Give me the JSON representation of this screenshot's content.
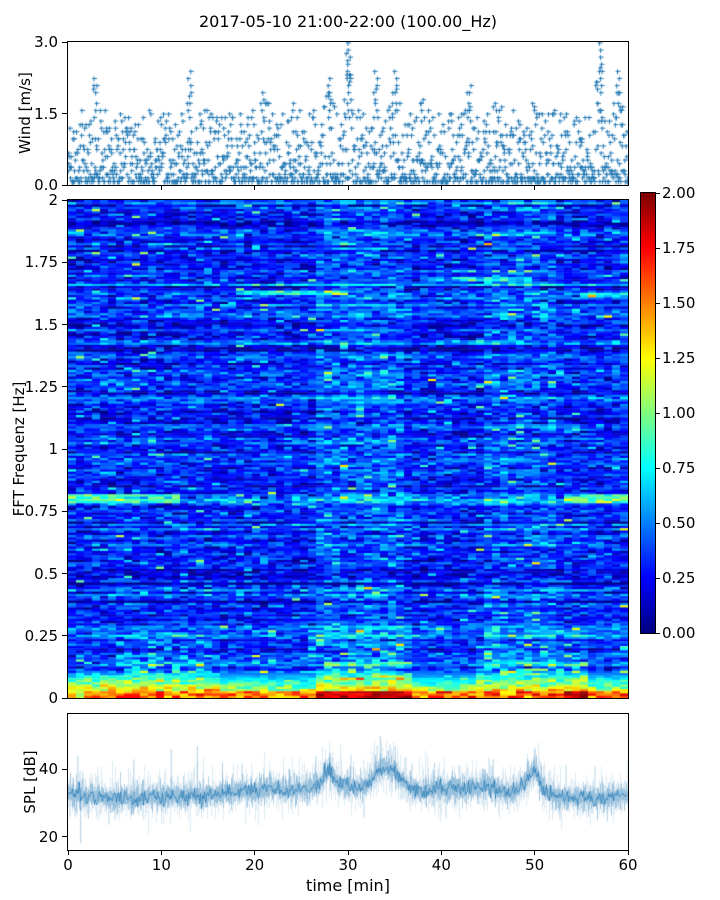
{
  "figure": {
    "title": "2017-05-10 21:00-22:00 (100.00_Hz)",
    "background": "#ffffff",
    "accent_color": "#1f77b4"
  },
  "chart_data": [
    {
      "id": "wind",
      "type": "scatter",
      "ylabel": "Wind [m/s]",
      "xlim": [
        0,
        60
      ],
      "ylim": [
        0,
        3
      ],
      "ytick_labels": [
        "0.0",
        "1.5",
        "3.0"
      ],
      "ytick_values": [
        0,
        1.5,
        3
      ],
      "xtick_minor_values": [
        10,
        20,
        30,
        40,
        50
      ],
      "marker": "plus",
      "color": "#1f77b4",
      "n_points": 1500,
      "quantize_step": 0.0745,
      "min_value": 0.07,
      "baseline_max": 1.55,
      "gust_peaks": [
        {
          "t": 3,
          "amp": 2.2
        },
        {
          "t": 8,
          "amp": 1.5
        },
        {
          "t": 13,
          "amp": 2.4
        },
        {
          "t": 17,
          "amp": 1.6
        },
        {
          "t": 21,
          "amp": 1.9
        },
        {
          "t": 24,
          "amp": 1.7
        },
        {
          "t": 28,
          "amp": 2.2
        },
        {
          "t": 30,
          "amp": 3.0
        },
        {
          "t": 33,
          "amp": 2.3
        },
        {
          "t": 35,
          "amp": 2.4
        },
        {
          "t": 38,
          "amp": 1.8
        },
        {
          "t": 43,
          "amp": 2.1
        },
        {
          "t": 46,
          "amp": 1.8
        },
        {
          "t": 50,
          "amp": 1.7
        },
        {
          "t": 54,
          "amp": 1.6
        },
        {
          "t": 57,
          "amp": 2.9
        },
        {
          "t": 59,
          "amp": 2.3
        }
      ]
    },
    {
      "id": "spectrogram",
      "type": "heatmap",
      "ylabel": "FFT Frequenz [Hz]",
      "xlim": [
        0,
        60
      ],
      "ylim": [
        0,
        2
      ],
      "ytick_labels": [
        "0",
        "0.25",
        "0.5",
        "0.75",
        "1",
        "1.25",
        "1.5",
        "1.75",
        "2"
      ],
      "ytick_values": [
        0,
        0.25,
        0.5,
        0.75,
        1,
        1.25,
        1.5,
        1.75,
        2
      ],
      "colormap": "jet",
      "clim": [
        0,
        2
      ],
      "n_time_bins": 70,
      "n_freq_bins": 220,
      "background_level": {
        "mean": 0.3,
        "row_sigma": 0.1,
        "cell_sigma": 0.13
      },
      "features": {
        "band_08": {
          "f_center": 0.8,
          "f_halfwidth": 0.022,
          "strong_t": [
            [
              0,
              12
            ],
            [
              53,
              60
            ]
          ]
        },
        "high_streaks": [
          {
            "f": 1.63,
            "t": [
              18,
              30
            ]
          },
          {
            "f": 1.68,
            "t": [
              38,
              50
            ]
          },
          {
            "f": 1.62,
            "t": [
              55,
              60
            ]
          }
        ],
        "low_streak_windows": [
          [
            5,
            15
          ],
          [
            26,
            37
          ],
          [
            44,
            56
          ]
        ],
        "vertical_columns": [
          {
            "t": [
              27,
              36
            ],
            "boost": 0.12
          },
          {
            "t": [
              45,
              52
            ],
            "boost": 0.1
          }
        ],
        "hot_bottom_windows": [
          [
            27,
            37
          ],
          [
            53,
            56
          ]
        ]
      }
    },
    {
      "id": "spl",
      "type": "line",
      "ylabel": "SPL [dB]",
      "xlabel": "time [min]",
      "xlim": [
        0,
        60
      ],
      "ylim": [
        16,
        56.5
      ],
      "ytick_labels": [
        "20",
        "40"
      ],
      "ytick_values": [
        20,
        40
      ],
      "xtick_labels": [
        "0",
        "10",
        "20",
        "30",
        "40",
        "50",
        "60"
      ],
      "xtick_values": [
        0,
        10,
        20,
        30,
        40,
        50,
        60
      ],
      "color": "#1f77b4",
      "mean_envelope_t_step": 1,
      "mean_envelope": [
        33,
        32.5,
        32,
        32,
        31.5,
        31,
        31.5,
        31,
        31.5,
        32,
        31.5,
        32,
        32,
        32.5,
        32,
        32,
        32.5,
        33,
        33.5,
        33.5,
        33.5,
        34,
        34.5,
        33.5,
        34,
        34,
        34.5,
        36,
        40,
        35.5,
        35,
        34.5,
        35,
        39,
        41,
        39,
        36,
        34,
        33.5,
        34,
        34,
        34.5,
        34,
        34.5,
        34,
        35.5,
        34,
        32.5,
        33.5,
        36,
        40,
        34,
        32,
        31.5,
        31.5,
        31.5,
        31.5,
        31.5,
        31.5,
        32,
        32.5
      ],
      "spikes": [
        {
          "t": 1.0,
          "v": 44
        },
        {
          "t": 1.3,
          "v": 18
        },
        {
          "t": 7,
          "v": 43
        },
        {
          "t": 11,
          "v": 46
        },
        {
          "t": 13.8,
          "v": 47
        },
        {
          "t": 16.5,
          "v": 42
        },
        {
          "t": 26.5,
          "v": 44
        },
        {
          "t": 28,
          "v": 45
        },
        {
          "t": 33.4,
          "v": 50
        },
        {
          "t": 35,
          "v": 47
        },
        {
          "t": 45.5,
          "v": 43
        },
        {
          "t": 50,
          "v": 46
        }
      ],
      "noise_sigma": 1.25
    }
  ],
  "colorbar": {
    "tick_labels": [
      "0.00",
      "0.25",
      "0.50",
      "0.75",
      "1.00",
      "1.25",
      "1.50",
      "1.75",
      "2.00"
    ],
    "tick_values": [
      0,
      0.25,
      0.5,
      0.75,
      1,
      1.25,
      1.5,
      1.75,
      2
    ],
    "colormap": "jet",
    "clim": [
      0,
      2
    ]
  }
}
